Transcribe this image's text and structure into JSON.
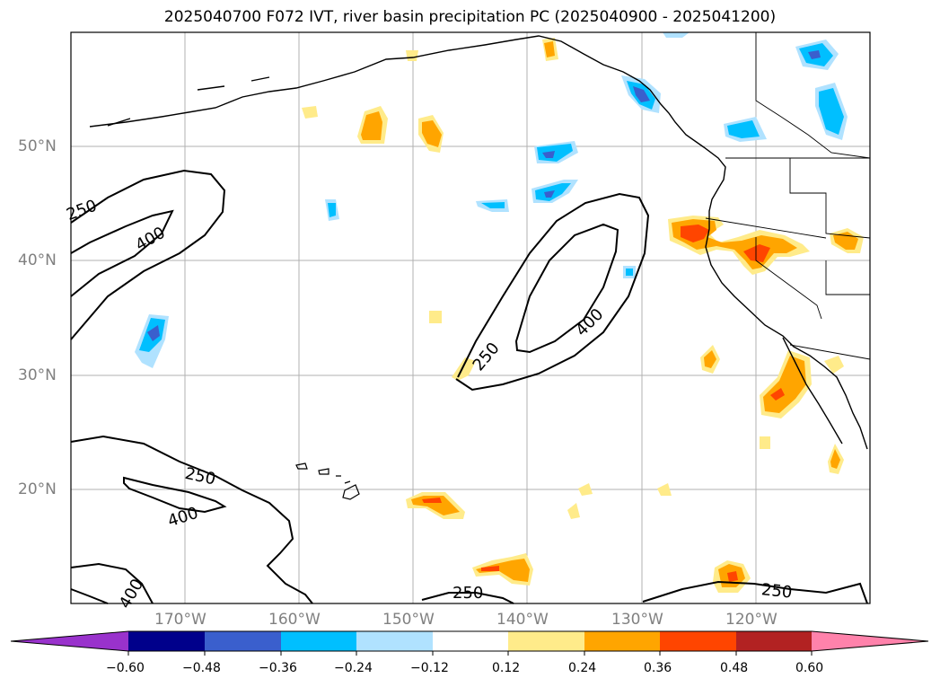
{
  "title": "2025040700 F072 IVT, river basin precipitation PC (2025040900 - 2025041200)",
  "map": {
    "lat_labels": [
      "50°N",
      "40°N",
      "30°N",
      "20°N"
    ],
    "lon_labels": [
      "170°W",
      "160°W",
      "150°W",
      "140°W",
      "130°W",
      "120°W"
    ],
    "extent": {
      "lon": [
        -180,
        -110
      ],
      "lat": [
        10,
        60
      ]
    },
    "ivt_contour_levels": [
      250,
      400
    ],
    "contour_labels": [
      "250",
      "400",
      "250",
      "400",
      "250",
      "400",
      "400",
      "250",
      "250"
    ]
  },
  "colorbar": {
    "ticks": [
      "−0.60",
      "−0.48",
      "−0.36",
      "−0.24",
      "−0.12",
      "0.12",
      "0.24",
      "0.36",
      "0.48",
      "0.60"
    ],
    "colors": [
      "#9932cc",
      "#00008b",
      "#3a5fcd",
      "#00bfff",
      "#b0e2ff",
      "#ffffff",
      "#ffeb8a",
      "#ffa500",
      "#ff4500",
      "#b22222",
      "#ff82ab"
    ]
  }
}
